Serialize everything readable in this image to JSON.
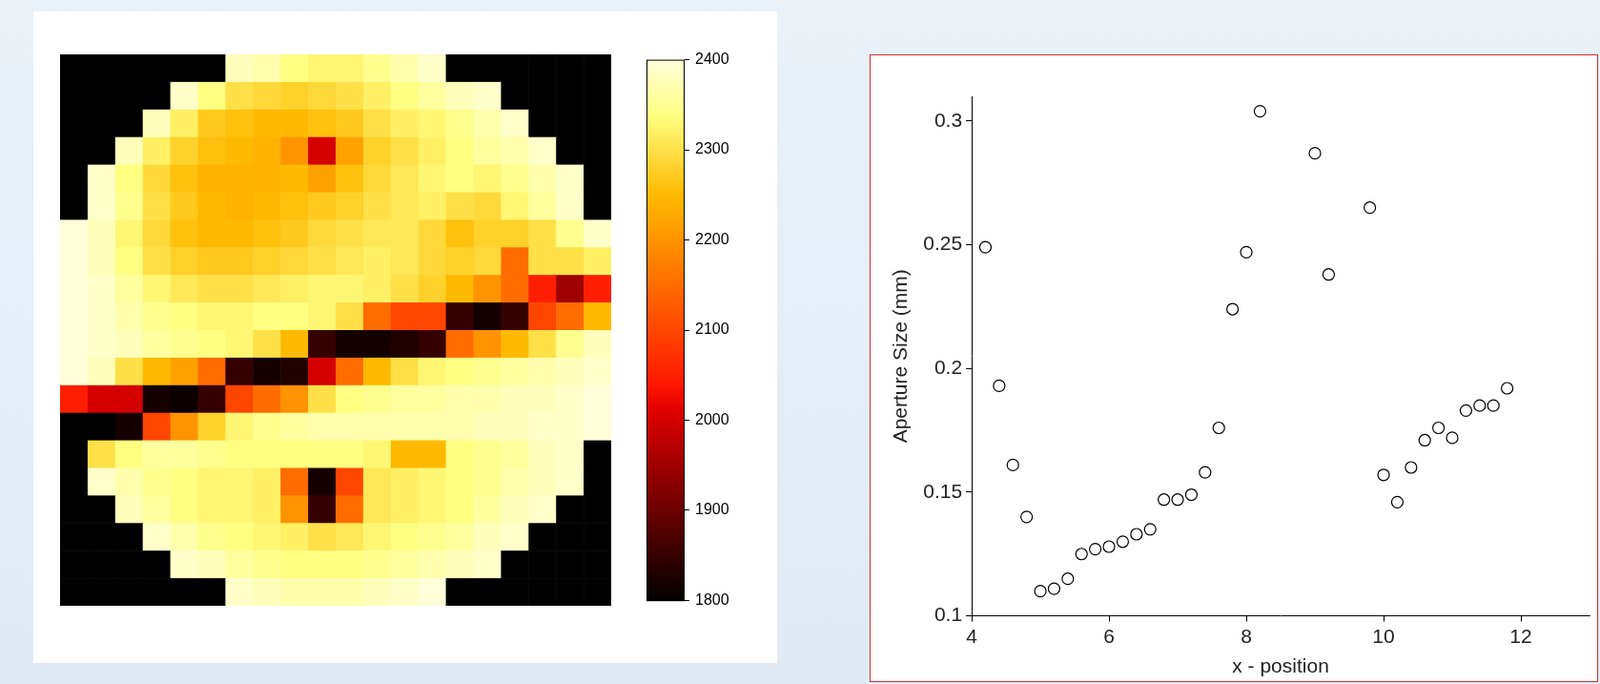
{
  "chart_data": [
    {
      "type": "heatmap",
      "tick_labels": false,
      "cells": [
        [
          1800,
          1800,
          1800,
          1800,
          1800,
          1800,
          2380,
          2370,
          2340,
          2330,
          2330,
          2350,
          2370,
          2390,
          1800,
          1800,
          1800,
          1800,
          1800,
          1800
        ],
        [
          1800,
          1800,
          1800,
          1800,
          2390,
          2340,
          2300,
          2290,
          2280,
          2290,
          2300,
          2320,
          2340,
          2360,
          2380,
          2390,
          1800,
          1800,
          1800,
          1800
        ],
        [
          1800,
          1800,
          1800,
          2380,
          2320,
          2270,
          2260,
          2250,
          2250,
          2260,
          2270,
          2300,
          2320,
          2330,
          2350,
          2370,
          2390,
          1800,
          1800,
          1800
        ],
        [
          1800,
          1800,
          2380,
          2320,
          2280,
          2260,
          2250,
          2240,
          2200,
          2000,
          2220,
          2280,
          2300,
          2320,
          2340,
          2360,
          2370,
          2390,
          1800,
          1800
        ],
        [
          1800,
          2390,
          2340,
          2290,
          2260,
          2240,
          2240,
          2240,
          2250,
          2220,
          2260,
          2290,
          2310,
          2330,
          2340,
          2330,
          2350,
          2370,
          2390,
          1800
        ],
        [
          1800,
          2390,
          2350,
          2300,
          2270,
          2250,
          2240,
          2250,
          2260,
          2270,
          2280,
          2300,
          2310,
          2320,
          2300,
          2290,
          2330,
          2360,
          2390,
          1800
        ],
        [
          2400,
          2380,
          2330,
          2290,
          2260,
          2250,
          2250,
          2260,
          2270,
          2290,
          2300,
          2310,
          2310,
          2290,
          2260,
          2280,
          2280,
          2300,
          2350,
          2390
        ],
        [
          2400,
          2380,
          2340,
          2300,
          2280,
          2270,
          2270,
          2280,
          2290,
          2300,
          2310,
          2320,
          2310,
          2290,
          2280,
          2290,
          2150,
          2300,
          2300,
          2320
        ],
        [
          2400,
          2390,
          2360,
          2330,
          2310,
          2300,
          2300,
          2310,
          2320,
          2330,
          2330,
          2320,
          2300,
          2280,
          2250,
          2200,
          2150,
          2050,
          1950,
          2050
        ],
        [
          2400,
          2390,
          2370,
          2350,
          2340,
          2330,
          2330,
          2340,
          2340,
          2330,
          2300,
          2150,
          2100,
          2100,
          1850,
          1820,
          1850,
          2100,
          2150,
          2250
        ],
        [
          2400,
          2390,
          2380,
          2360,
          2350,
          2340,
          2330,
          2300,
          2250,
          1850,
          1820,
          1820,
          1830,
          1850,
          2150,
          2200,
          2250,
          2300,
          2350,
          2380
        ],
        [
          2400,
          2380,
          2300,
          2250,
          2220,
          2150,
          1850,
          1820,
          1830,
          2000,
          2150,
          2250,
          2300,
          2330,
          2340,
          2350,
          2360,
          2370,
          2380,
          2390
        ],
        [
          2050,
          2000,
          2000,
          1820,
          1810,
          1850,
          2100,
          2150,
          2200,
          2300,
          2340,
          2350,
          2360,
          2360,
          2370,
          2370,
          2380,
          2380,
          2390,
          2400
        ],
        [
          1800,
          1800,
          1820,
          2100,
          2200,
          2280,
          2330,
          2350,
          2360,
          2370,
          2370,
          2370,
          2370,
          2370,
          2370,
          2380,
          2380,
          2390,
          2390,
          2400
        ],
        [
          1800,
          2300,
          2340,
          2360,
          2360,
          2350,
          2340,
          2340,
          2340,
          2340,
          2340,
          2330,
          2250,
          2250,
          2340,
          2350,
          2360,
          2380,
          2390,
          1800
        ],
        [
          1800,
          2390,
          2370,
          2350,
          2340,
          2330,
          2330,
          2320,
          2150,
          1820,
          2100,
          2310,
          2320,
          2330,
          2340,
          2350,
          2370,
          2380,
          2390,
          1800
        ],
        [
          1800,
          1800,
          2380,
          2360,
          2340,
          2330,
          2330,
          2320,
          2200,
          1850,
          2150,
          2310,
          2320,
          2330,
          2340,
          2360,
          2380,
          2390,
          1800,
          1800
        ],
        [
          1800,
          1800,
          1800,
          2390,
          2370,
          2350,
          2340,
          2330,
          2320,
          2300,
          2310,
          2330,
          2340,
          2350,
          2360,
          2380,
          2390,
          1800,
          1800,
          1800
        ],
        [
          1800,
          1800,
          1800,
          1800,
          2390,
          2380,
          2360,
          2350,
          2340,
          2340,
          2340,
          2350,
          2360,
          2370,
          2380,
          2390,
          1800,
          1800,
          1800,
          1800
        ],
        [
          1800,
          1800,
          1800,
          1800,
          1800,
          1800,
          2390,
          2380,
          2370,
          2370,
          2370,
          2380,
          2390,
          2400,
          1800,
          1800,
          1800,
          1800,
          1800,
          1800
        ]
      ],
      "colorbar": {
        "range": [
          1800,
          2400
        ],
        "ticks": [
          1800,
          1900,
          2000,
          2100,
          2200,
          2300,
          2400
        ]
      }
    },
    {
      "type": "scatter",
      "xlabel": "x - position",
      "ylabel": "Aperture Size (mm)",
      "x": [
        4.2,
        4.4,
        4.6,
        4.8,
        5.0,
        5.2,
        5.4,
        5.6,
        5.8,
        6.0,
        6.2,
        6.4,
        6.6,
        6.8,
        7.0,
        7.2,
        7.4,
        7.6,
        7.8,
        8.0,
        8.2,
        9.0,
        9.2,
        9.8,
        10.0,
        10.2,
        10.4,
        10.6,
        10.8,
        11.0,
        11.2,
        11.4,
        11.6,
        11.8
      ],
      "values": [
        0.249,
        0.193,
        0.161,
        0.14,
        0.11,
        0.111,
        0.115,
        0.125,
        0.127,
        0.128,
        0.13,
        0.133,
        0.135,
        0.147,
        0.147,
        0.149,
        0.158,
        0.176,
        0.224,
        0.247,
        0.304,
        0.287,
        0.238,
        0.265,
        0.157,
        0.146,
        0.16,
        0.171,
        0.176,
        0.172,
        0.183,
        0.185,
        0.185,
        0.192
      ],
      "xlim": [
        4,
        13
      ],
      "ylim": [
        0.1,
        0.31
      ],
      "xticks": [
        4,
        6,
        8,
        10,
        12
      ],
      "yticks": [
        0.1,
        0.15,
        0.2,
        0.25,
        0.3
      ],
      "grid": false,
      "marker": "circle",
      "color": "#000000"
    }
  ]
}
